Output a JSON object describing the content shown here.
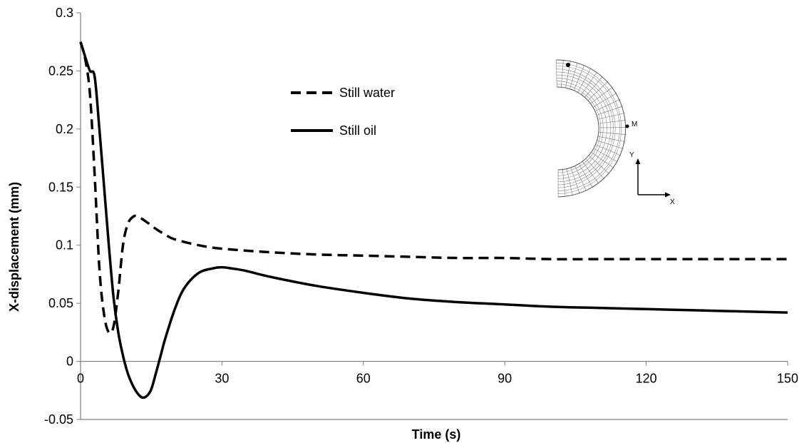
{
  "chart_data": {
    "type": "line",
    "title": "",
    "xlabel": "Time (s)",
    "ylabel": "X-displacement (mm)",
    "xlim": [
      0,
      150
    ],
    "ylim": [
      -0.05,
      0.3
    ],
    "xticks": [
      0,
      30,
      60,
      90,
      120,
      150
    ],
    "yticks": [
      -0.05,
      0,
      0.05,
      0.1,
      0.15,
      0.2,
      0.25,
      0.3
    ],
    "ytick_labels": [
      "-0.05",
      "0",
      "0.05",
      "0.1",
      "0.15",
      "0.2",
      "0.25",
      "0.3"
    ],
    "xtick_labels": [
      "0",
      "30",
      "60",
      "90",
      "120",
      "150"
    ],
    "grid": false,
    "legend_position": "upper-center",
    "series": [
      {
        "name": "Still water",
        "style": "dashed",
        "color": "#000000",
        "x": [
          0,
          1,
          2,
          3,
          4,
          5,
          6,
          7,
          8,
          9,
          10,
          11,
          12,
          14,
          16,
          18,
          20,
          25,
          30,
          40,
          50,
          60,
          70,
          80,
          90,
          100,
          110,
          120,
          130,
          140,
          150
        ],
        "y": [
          0.275,
          0.26,
          0.23,
          0.16,
          0.08,
          0.04,
          0.025,
          0.03,
          0.06,
          0.1,
          0.118,
          0.124,
          0.125,
          0.12,
          0.114,
          0.109,
          0.105,
          0.1,
          0.097,
          0.094,
          0.092,
          0.091,
          0.09,
          0.089,
          0.089,
          0.088,
          0.088,
          0.088,
          0.088,
          0.088,
          0.088
        ]
      },
      {
        "name": "Still oil",
        "style": "solid",
        "color": "#000000",
        "x": [
          0,
          1,
          2,
          3,
          4,
          5,
          6,
          7,
          8,
          9,
          10,
          11,
          12,
          13,
          14,
          15,
          16,
          17,
          18,
          20,
          22,
          25,
          28,
          30,
          32,
          35,
          40,
          50,
          60,
          70,
          80,
          90,
          100,
          110,
          120,
          130,
          140,
          150
        ],
        "y": [
          0.275,
          0.262,
          0.25,
          0.245,
          0.2,
          0.15,
          0.1,
          0.055,
          0.025,
          0.005,
          -0.01,
          -0.02,
          -0.027,
          -0.031,
          -0.03,
          -0.024,
          -0.01,
          0.005,
          0.02,
          0.045,
          0.063,
          0.076,
          0.08,
          0.081,
          0.08,
          0.078,
          0.073,
          0.065,
          0.059,
          0.054,
          0.051,
          0.049,
          0.047,
          0.046,
          0.045,
          0.044,
          0.043,
          0.042
        ]
      }
    ]
  },
  "inset": {
    "point_label": "M",
    "y_axis_label": "Y",
    "x_axis_label": "X"
  }
}
